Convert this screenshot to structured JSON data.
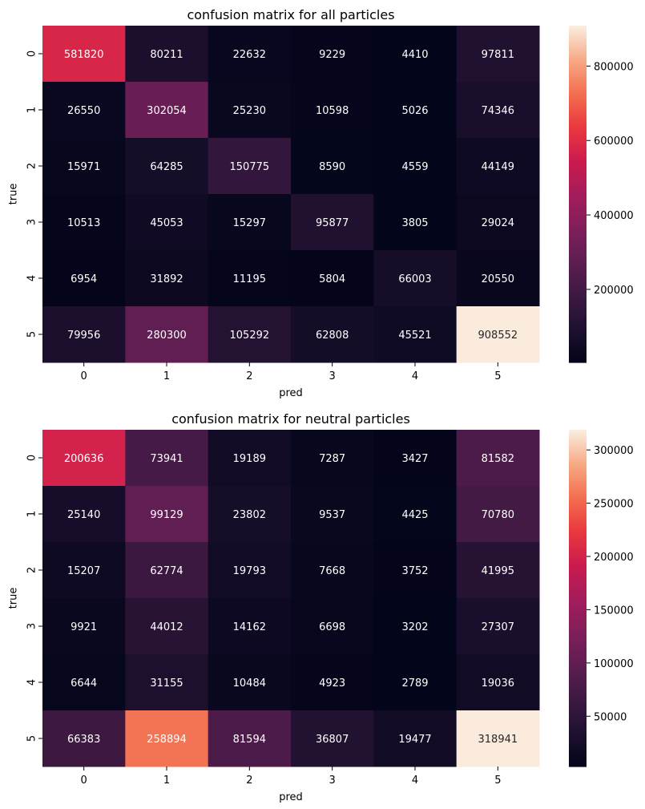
{
  "chart_data": [
    {
      "type": "heatmap",
      "title": "confusion matrix for all particles",
      "xlabel": "pred",
      "ylabel": "true",
      "x_categories": [
        "0",
        "1",
        "2",
        "3",
        "4",
        "5"
      ],
      "y_categories": [
        "0",
        "1",
        "2",
        "3",
        "4",
        "5"
      ],
      "values": [
        [
          581820,
          80211,
          22632,
          9229,
          4410,
          97811
        ],
        [
          26550,
          302054,
          25230,
          10598,
          5026,
          74346
        ],
        [
          15971,
          64285,
          150775,
          8590,
          4559,
          44149
        ],
        [
          10513,
          45053,
          15297,
          95877,
          3805,
          29024
        ],
        [
          6954,
          31892,
          11195,
          5804,
          66003,
          20550
        ],
        [
          79956,
          280300,
          105292,
          62808,
          45521,
          908552
        ]
      ],
      "colorbar": {
        "min": 3805,
        "max": 908552,
        "ticks": [
          200000,
          400000,
          600000,
          800000
        ],
        "tick_labels": [
          "200000",
          "400000",
          "600000",
          "800000"
        ]
      },
      "colormap": "rocket"
    },
    {
      "type": "heatmap",
      "title": "confusion matrix for neutral particles",
      "xlabel": "pred",
      "ylabel": "true",
      "x_categories": [
        "0",
        "1",
        "2",
        "3",
        "4",
        "5"
      ],
      "y_categories": [
        "0",
        "1",
        "2",
        "3",
        "4",
        "5"
      ],
      "values": [
        [
          200636,
          73941,
          19189,
          7287,
          3427,
          81582
        ],
        [
          25140,
          99129,
          23802,
          9537,
          4425,
          70780
        ],
        [
          15207,
          62774,
          19793,
          7668,
          3752,
          41995
        ],
        [
          9921,
          44012,
          14162,
          6698,
          3202,
          27307
        ],
        [
          6644,
          31155,
          10484,
          4923,
          2789,
          19036
        ],
        [
          66383,
          258894,
          81594,
          36807,
          19477,
          318941
        ]
      ],
      "colorbar": {
        "min": 2789,
        "max": 318941,
        "ticks": [
          50000,
          100000,
          150000,
          200000,
          250000,
          300000
        ],
        "tick_labels": [
          "50000",
          "100000",
          "150000",
          "200000",
          "250000",
          "300000"
        ]
      },
      "colormap": "rocket"
    }
  ]
}
